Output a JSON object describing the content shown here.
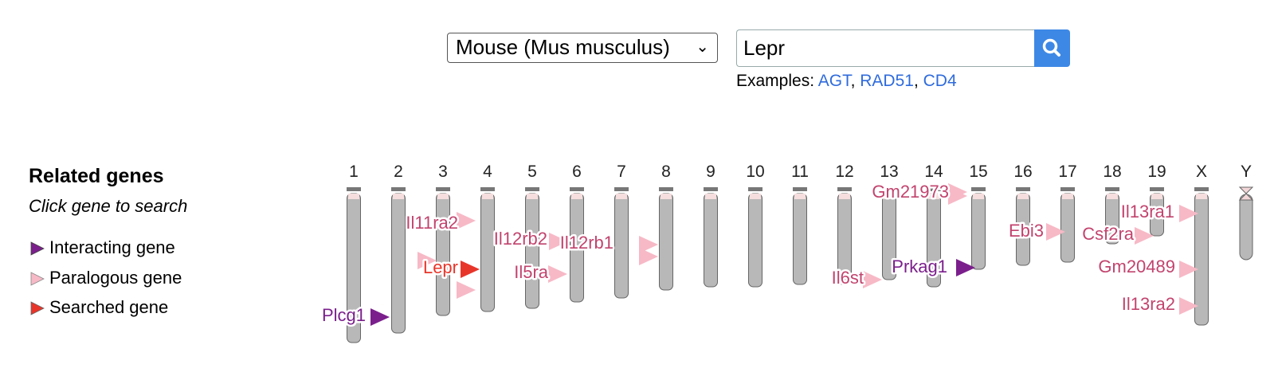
{
  "search": {
    "species_value": "Mouse (Mus musculus)",
    "query_value": "Lepr",
    "examples_label": "Examples:",
    "examples": [
      "AGT",
      "RAD51",
      "CD4"
    ]
  },
  "sidebar": {
    "title": "Related genes",
    "subtitle": "Click gene to search",
    "legend": [
      {
        "label": "Interacting gene",
        "color": "#7b1f8c"
      },
      {
        "label": "Paralogous gene",
        "color": "#f4b6c2"
      },
      {
        "label": "Searched gene",
        "color": "#e8352a"
      }
    ]
  },
  "colors": {
    "chromosome": "#b8b8b8",
    "interacting": "#7b1f8c",
    "paralog_label": "#c2436e",
    "paralog_arrow": "#f7b9c6",
    "searched": "#e8352a",
    "button": "#3d88e5",
    "link": "#2f6bdc"
  },
  "chromosomes": [
    "1",
    "2",
    "3",
    "4",
    "5",
    "6",
    "7",
    "8",
    "9",
    "10",
    "11",
    "12",
    "13",
    "14",
    "15",
    "16",
    "17",
    "18",
    "19",
    "X",
    "Y"
  ],
  "genes": [
    {
      "name": "Il11ra2",
      "type": "paralogous",
      "chromosome": "4"
    },
    {
      "name": "Lepr",
      "type": "searched",
      "chromosome": "4"
    },
    {
      "name": "Plcg1",
      "type": "interacting",
      "chromosome": "2"
    },
    {
      "name": "Il12rb2",
      "type": "paralogous",
      "chromosome": "6"
    },
    {
      "name": "Il5ra",
      "type": "paralogous",
      "chromosome": "6"
    },
    {
      "name": "Il12rb1",
      "type": "paralogous",
      "chromosome": "8"
    },
    {
      "name": "Il6st",
      "type": "paralogous",
      "chromosome": "13"
    },
    {
      "name": "Gm21973",
      "type": "paralogous",
      "chromosome": "15"
    },
    {
      "name": "Prkag1",
      "type": "interacting",
      "chromosome": "15"
    },
    {
      "name": "Ebi3",
      "type": "paralogous",
      "chromosome": "17"
    },
    {
      "name": "Csf2ra",
      "type": "paralogous",
      "chromosome": "19"
    },
    {
      "name": "Il13ra1",
      "type": "paralogous",
      "chromosome": "X"
    },
    {
      "name": "Gm20489",
      "type": "paralogous",
      "chromosome": "X"
    },
    {
      "name": "Il13ra2",
      "type": "paralogous",
      "chromosome": "X"
    }
  ]
}
